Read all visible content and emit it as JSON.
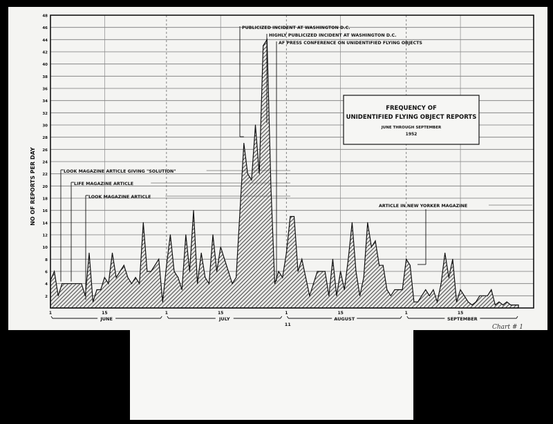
{
  "chart_data": {
    "type": "area",
    "title": "FREQUENCY OF UNIDENTIFIED FLYING OBJECT REPORTS",
    "title_lines": [
      "FREQUENCY OF",
      "UNIDENTIFIED FLYING OBJECT REPORTS"
    ],
    "subtitle": "JUNE THROUGH SEPTEMBER",
    "year": "1952",
    "ylabel": "NO OF REPORTS PER DAY",
    "xlabel": "",
    "ylim": [
      0,
      48
    ],
    "yticks": [
      2,
      4,
      6,
      8,
      10,
      12,
      14,
      16,
      18,
      20,
      22,
      24,
      26,
      28,
      30,
      32,
      34,
      36,
      38,
      40,
      42,
      44,
      46,
      48
    ],
    "grid": true,
    "fill": "hatched",
    "months": [
      {
        "name": "JUNE",
        "days": 30,
        "tick_labels": [
          "1",
          "15"
        ]
      },
      {
        "name": "JULY",
        "days": 31,
        "tick_labels": [
          "1",
          "15"
        ]
      },
      {
        "name": "AUGUST",
        "days": 31,
        "tick_labels": [
          "1",
          "15"
        ]
      },
      {
        "name": "SEPTEMBER",
        "days": 30,
        "tick_labels": [
          "1",
          "15"
        ]
      }
    ],
    "extra_tick_label": "11",
    "series": [
      {
        "values": [
          4.5,
          6,
          2,
          4,
          4,
          4,
          4,
          4,
          4,
          2,
          9,
          1,
          3,
          3,
          5,
          4,
          9,
          5,
          6,
          7,
          5,
          4,
          5,
          4,
          14,
          6,
          6,
          7,
          8,
          1,
          7,
          12,
          6,
          5,
          3,
          12,
          6,
          16,
          4,
          9,
          5,
          4,
          12,
          6,
          10,
          8,
          6,
          4,
          5,
          16,
          27,
          22,
          21,
          30,
          22,
          43,
          44,
          20,
          4,
          6,
          5,
          9,
          15,
          15,
          6,
          8,
          5,
          2,
          4,
          6,
          6,
          6,
          2,
          8,
          2,
          6,
          3,
          8,
          14,
          6,
          2,
          5,
          14,
          10,
          11,
          7,
          7,
          3,
          2,
          3,
          3,
          3,
          8,
          7,
          1,
          1,
          2,
          3,
          2,
          3,
          1,
          4,
          9,
          5,
          8,
          1,
          3,
          2,
          1,
          0.5,
          1,
          2,
          2,
          2,
          3,
          0.5,
          1,
          0.5,
          1,
          0.5,
          0.5,
          0.5
        ]
      }
    ],
    "annotations": [
      {
        "text": "LOOK MAGAZINE ARTICLE GIVING \"SOLUTION\"",
        "emphasis": "LOOK",
        "month": "JUNE",
        "day": 4
      },
      {
        "text": "LIFE MAGAZINE ARTICLE",
        "emphasis": "LIFE",
        "month": "JUNE",
        "day": 7
      },
      {
        "text": "LOOK MAGAZINE ARTICLE",
        "emphasis": "LOOK",
        "month": "JUNE",
        "day": 12
      },
      {
        "text": "PUBLICIZED INCIDENT AT WASHINGTON D.C.",
        "month": "JULY",
        "day": 21
      },
      {
        "text": "HIGHLY PUBLICIZED INCIDENT AT WASHINGTON D.C.",
        "month": "JULY",
        "day": 24
      },
      {
        "text": "AF PRESS CONFERENCE ON UNIDENTIFIED FLYING OBJECTS",
        "month": "JULY",
        "day": 29
      },
      {
        "text": "ARTICLE IN NEW YORKER MAGAZINE",
        "emphasis": "NEW YORKER",
        "month": "SEPTEMBER",
        "day": 3
      }
    ],
    "handwritten_note": "Chart # 1"
  }
}
